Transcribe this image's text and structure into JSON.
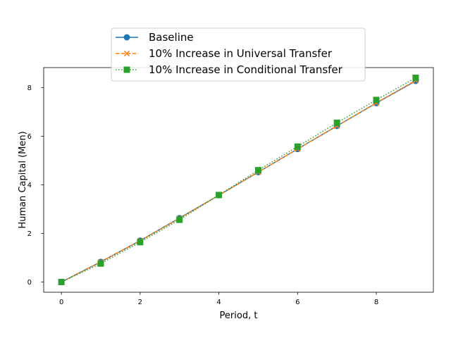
{
  "chart_data": {
    "type": "line",
    "xlabel": "Period, t",
    "ylabel": "Human Capital (Men)",
    "xlim": [
      -0.45,
      9.45
    ],
    "ylim": [
      -0.42,
      8.82
    ],
    "xticks": [
      0,
      2,
      4,
      6,
      8
    ],
    "yticks": [
      0,
      2,
      4,
      6,
      8
    ],
    "grid": false,
    "legend_position": "top-center",
    "x": [
      0,
      1,
      2,
      3,
      4,
      5,
      6,
      7,
      8,
      9
    ],
    "series": [
      {
        "name": "Baseline",
        "values": [
          0,
          0.83,
          1.7,
          2.63,
          3.57,
          4.52,
          5.47,
          6.42,
          7.36,
          8.27
        ],
        "color": "#1f77b4",
        "linestyle": "solid",
        "marker": "circle"
      },
      {
        "name": "10% Increase in Universal Transfer",
        "values": [
          0,
          0.83,
          1.7,
          2.62,
          3.57,
          4.52,
          5.47,
          6.42,
          7.37,
          8.29
        ],
        "color": "#ff7f0e",
        "linestyle": "dashed",
        "marker": "x"
      },
      {
        "name": "10% Increase in Conditional Transfer",
        "values": [
          0,
          0.76,
          1.64,
          2.56,
          3.58,
          4.6,
          5.57,
          6.55,
          7.49,
          8.4
        ],
        "color": "#2ca02c",
        "linestyle": "dotted",
        "marker": "square"
      }
    ]
  }
}
